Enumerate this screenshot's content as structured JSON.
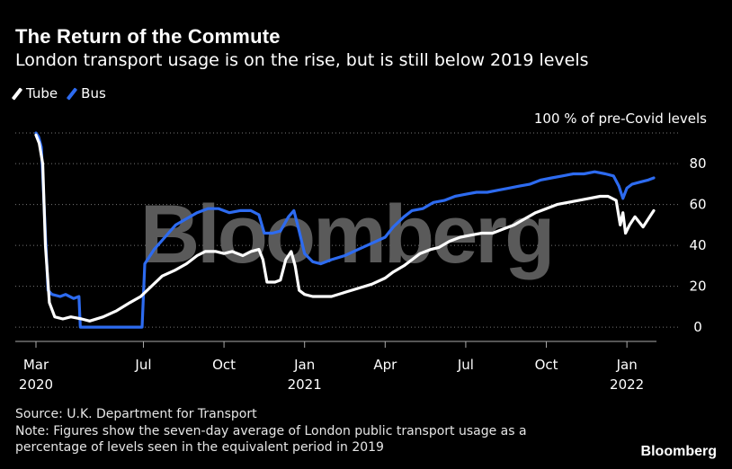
{
  "title": "The Return of the Commute",
  "subtitle": "London transport usage is on the rise, but is still below 2019 levels",
  "legend": [
    {
      "label": "Tube",
      "color": "#ffffff"
    },
    {
      "label": "Bus",
      "color": "#2d6bf0"
    }
  ],
  "unit_label": "100 % of pre-Covid levels",
  "watermark": "Bloomberg",
  "source": "Source: U.K. Department for Transport",
  "note_line1": "Note: Figures show the seven-day average of London public transport usage as a",
  "note_line2": "percentage of levels seen in the equivalent period in 2019",
  "brand": "Bloomberg",
  "chart_data": {
    "type": "line",
    "y_ticks": [
      "0",
      "20",
      "40",
      "60",
      "80"
    ],
    "ylim": [
      -7,
      95
    ],
    "x_ticks": [
      {
        "label": "Mar",
        "year": "2020",
        "x": 0
      },
      {
        "label": "Jul",
        "year": "",
        "x": 4
      },
      {
        "label": "Oct",
        "year": "",
        "x": 7
      },
      {
        "label": "Jan",
        "year": "2021",
        "x": 10
      },
      {
        "label": "Apr",
        "year": "",
        "x": 13
      },
      {
        "label": "Jul",
        "year": "",
        "x": 16
      },
      {
        "label": "Oct",
        "year": "",
        "x": 19
      },
      {
        "label": "Jan",
        "year": "2022",
        "x": 22
      }
    ],
    "xlim": [
      0,
      23.1
    ],
    "series": [
      {
        "name": "Tube",
        "color": "#ffffff",
        "points": [
          [
            0,
            94
          ],
          [
            0.12,
            90
          ],
          [
            0.25,
            80
          ],
          [
            0.35,
            40
          ],
          [
            0.5,
            12
          ],
          [
            0.7,
            5
          ],
          [
            1,
            4
          ],
          [
            1.3,
            5
          ],
          [
            1.7,
            4
          ],
          [
            2,
            3
          ],
          [
            2.5,
            5
          ],
          [
            3,
            8
          ],
          [
            3.5,
            12
          ],
          [
            3.9,
            15
          ],
          [
            4.3,
            20
          ],
          [
            4.7,
            25
          ],
          [
            5.2,
            28
          ],
          [
            5.6,
            31
          ],
          [
            6,
            35
          ],
          [
            6.3,
            37
          ],
          [
            6.7,
            37
          ],
          [
            7,
            36
          ],
          [
            7.3,
            37
          ],
          [
            7.7,
            35
          ],
          [
            8,
            37
          ],
          [
            8.3,
            38
          ],
          [
            8.45,
            33
          ],
          [
            8.6,
            22
          ],
          [
            8.9,
            22
          ],
          [
            9.1,
            23
          ],
          [
            9.3,
            33
          ],
          [
            9.5,
            37
          ],
          [
            9.65,
            30
          ],
          [
            9.8,
            18
          ],
          [
            10,
            16
          ],
          [
            10.3,
            15
          ],
          [
            10.6,
            15
          ],
          [
            11,
            15
          ],
          [
            11.5,
            17
          ],
          [
            12,
            19
          ],
          [
            12.5,
            21
          ],
          [
            13,
            24
          ],
          [
            13.3,
            27
          ],
          [
            13.7,
            30
          ],
          [
            14,
            33
          ],
          [
            14.3,
            36
          ],
          [
            14.7,
            38
          ],
          [
            15,
            39
          ],
          [
            15.4,
            42
          ],
          [
            15.8,
            44
          ],
          [
            16.2,
            45
          ],
          [
            16.6,
            46
          ],
          [
            17,
            46
          ],
          [
            17.4,
            48
          ],
          [
            17.8,
            50
          ],
          [
            18.2,
            53
          ],
          [
            18.6,
            56
          ],
          [
            19,
            58
          ],
          [
            19.4,
            60
          ],
          [
            19.8,
            61
          ],
          [
            20.2,
            62
          ],
          [
            20.6,
            63
          ],
          [
            21,
            64
          ],
          [
            21.3,
            64
          ],
          [
            21.6,
            62
          ],
          [
            21.75,
            50
          ],
          [
            21.85,
            56
          ],
          [
            21.95,
            46
          ],
          [
            22.1,
            50
          ],
          [
            22.3,
            54
          ],
          [
            22.6,
            49
          ],
          [
            22.8,
            53
          ],
          [
            23,
            57
          ]
        ]
      },
      {
        "name": "Bus",
        "color": "#2d6bf0",
        "points": [
          [
            0,
            95
          ],
          [
            0.1,
            93
          ],
          [
            0.2,
            88
          ],
          [
            0.3,
            60
          ],
          [
            0.45,
            18
          ],
          [
            0.6,
            16
          ],
          [
            0.9,
            15
          ],
          [
            1.1,
            16
          ],
          [
            1.4,
            14
          ],
          [
            1.6,
            15
          ],
          [
            1.65,
            0
          ],
          [
            2.5,
            0
          ],
          [
            3.5,
            0
          ],
          [
            3.95,
            0
          ],
          [
            4.05,
            31
          ],
          [
            4.4,
            38
          ],
          [
            4.8,
            44
          ],
          [
            5.2,
            50
          ],
          [
            5.6,
            53
          ],
          [
            6,
            56
          ],
          [
            6.4,
            58
          ],
          [
            6.8,
            58
          ],
          [
            7.2,
            56
          ],
          [
            7.6,
            57
          ],
          [
            8,
            57
          ],
          [
            8.3,
            55
          ],
          [
            8.5,
            46
          ],
          [
            8.8,
            46
          ],
          [
            9.1,
            47
          ],
          [
            9.4,
            54
          ],
          [
            9.6,
            57
          ],
          [
            9.8,
            47
          ],
          [
            10,
            36
          ],
          [
            10.3,
            32
          ],
          [
            10.6,
            31
          ],
          [
            11,
            33
          ],
          [
            11.5,
            35
          ],
          [
            12,
            38
          ],
          [
            12.5,
            41
          ],
          [
            13,
            44
          ],
          [
            13.3,
            49
          ],
          [
            13.7,
            54
          ],
          [
            14,
            57
          ],
          [
            14.4,
            58
          ],
          [
            14.8,
            61
          ],
          [
            15.2,
            62
          ],
          [
            15.6,
            64
          ],
          [
            16,
            65
          ],
          [
            16.4,
            66
          ],
          [
            16.8,
            66
          ],
          [
            17.2,
            67
          ],
          [
            17.6,
            68
          ],
          [
            18,
            69
          ],
          [
            18.4,
            70
          ],
          [
            18.8,
            72
          ],
          [
            19.2,
            73
          ],
          [
            19.6,
            74
          ],
          [
            20,
            75
          ],
          [
            20.4,
            75
          ],
          [
            20.8,
            76
          ],
          [
            21.2,
            75
          ],
          [
            21.5,
            74
          ],
          [
            21.7,
            69
          ],
          [
            21.85,
            63
          ],
          [
            22,
            68
          ],
          [
            22.2,
            70
          ],
          [
            22.5,
            71
          ],
          [
            22.8,
            72
          ],
          [
            23,
            73
          ]
        ]
      }
    ]
  }
}
